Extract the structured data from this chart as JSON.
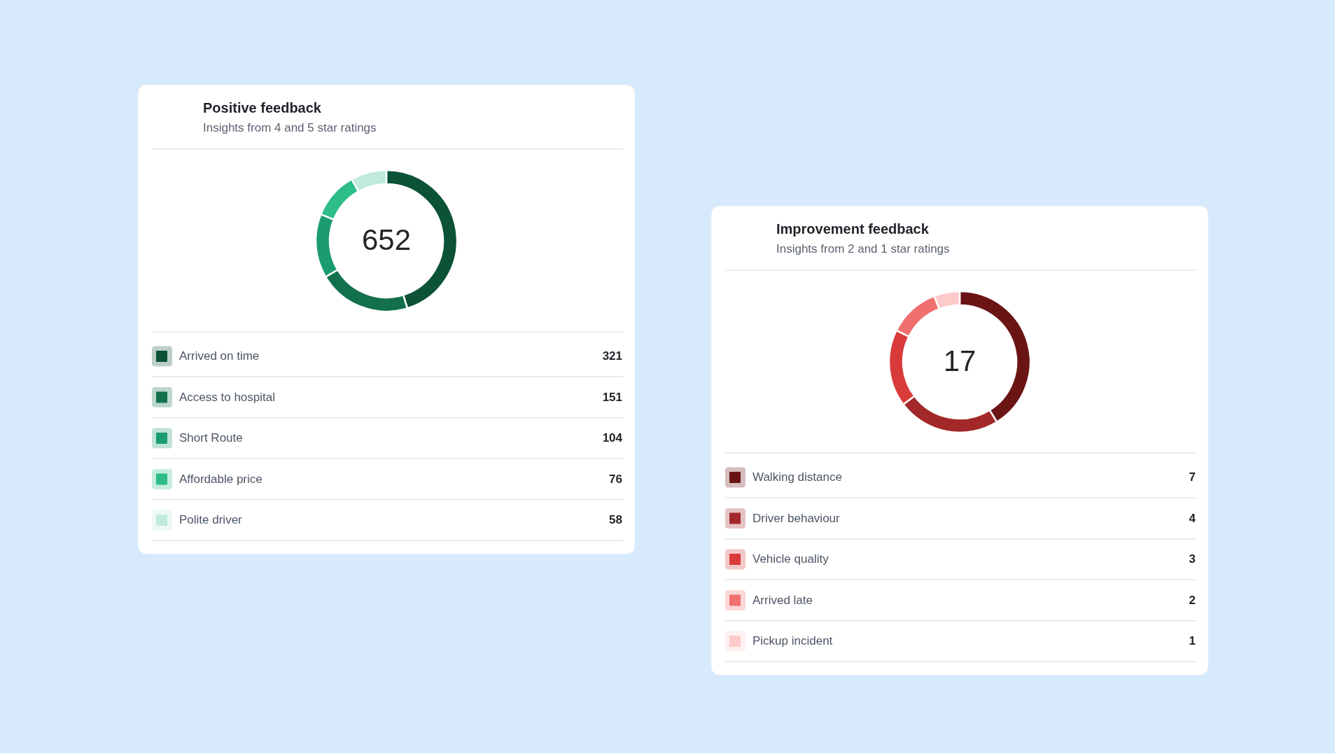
{
  "chart_data": [
    {
      "type": "donut",
      "title": "Positive feedback",
      "subtitle": "Insights from 4 and 5 star ratings",
      "categories": [
        "Arrived on time",
        "Access to hospital",
        "Short Route",
        "Affordable price",
        "Polite driver"
      ],
      "values": [
        321,
        151,
        104,
        76,
        58
      ],
      "colors": [
        "#0b5236",
        "#13704d",
        "#1b9c6e",
        "#2dbd88",
        "#c0eadb"
      ],
      "annotations": [
        "652"
      ],
      "legend": "bottom",
      "data_labels": true
    },
    {
      "type": "donut",
      "title": "Improvement feedback",
      "subtitle": "Insights from 2 and 1 star ratings",
      "categories": [
        "Walking distance",
        "Driver behaviour",
        "Vehicle quality",
        "Arrived late",
        "Pickup incident"
      ],
      "values": [
        7,
        4,
        3,
        2,
        1
      ],
      "colors": [
        "#6b1414",
        "#a3282a",
        "#d93a3a",
        "#f07070",
        "#fecaca"
      ],
      "annotations": [
        "17"
      ],
      "legend": "bottom",
      "data_labels": true
    }
  ]
}
